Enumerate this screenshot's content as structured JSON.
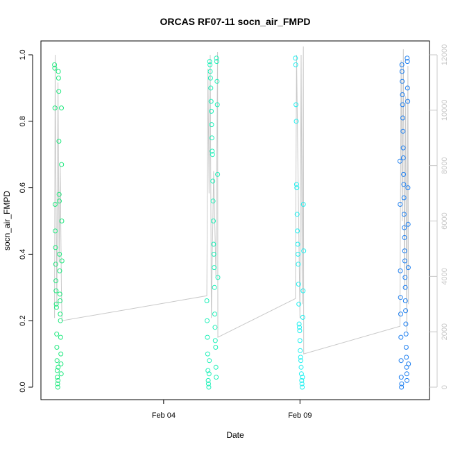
{
  "chart_data": {
    "type": "scatter",
    "title": "ORCAS RF07-11 socn_air_FMPD",
    "xlabel": "Date",
    "ylabel": "socn_air_FMPD",
    "xlim": [
      "2016-01-30T12:00",
      "2016-02-13T18:00"
    ],
    "ylim": [
      0,
      1
    ],
    "x_ticks": [
      {
        "label": "Feb 04",
        "value": "2016-02-04T00:00"
      },
      {
        "label": "Feb 09",
        "value": "2016-02-09T00:00"
      }
    ],
    "y_ticks": [
      "0.0",
      "0.2",
      "0.4",
      "0.6",
      "0.8",
      "1.0"
    ],
    "y2_ticks": [
      "0",
      "2000",
      "4000",
      "6000",
      "8000",
      "10000",
      "12000"
    ],
    "y2lim": [
      0,
      12000
    ],
    "grid": false,
    "legend": "none",
    "secondary_line_color": "#c8c8c8",
    "series": [
      {
        "color": "#1de87d",
        "x": [
          "2016-01-31T00:00",
          "2016-01-31T00:10",
          "2016-01-31T00:20",
          "2016-01-31T00:30",
          "2016-01-31T00:40",
          "2016-01-31T00:50",
          "2016-01-31T01:00",
          "2016-01-31T01:10",
          "2016-01-31T01:20",
          "2016-01-31T01:30",
          "2016-01-31T01:40",
          "2016-01-31T01:50",
          "2016-01-31T02:00",
          "2016-01-31T02:10",
          "2016-01-31T02:20",
          "2016-01-31T02:30",
          "2016-01-31T02:40",
          "2016-01-31T02:50",
          "2016-01-31T03:00",
          "2016-01-31T03:10",
          "2016-01-31T03:20",
          "2016-01-31T03:30",
          "2016-01-31T03:40",
          "2016-01-31T03:50",
          "2016-01-31T04:00",
          "2016-01-31T04:10",
          "2016-01-31T04:20",
          "2016-01-31T04:30",
          "2016-01-31T04:40",
          "2016-01-31T04:50",
          "2016-01-31T05:00",
          "2016-01-31T05:10",
          "2016-01-31T05:20",
          "2016-01-31T05:30",
          "2016-01-31T05:40",
          "2016-01-31T05:50",
          "2016-01-31T06:00",
          "2016-01-31T06:10",
          "2016-01-31T06:20",
          "2016-01-31T06:30"
        ],
        "values": [
          0.97,
          0.96,
          0.84,
          0.55,
          0.47,
          0.42,
          0.37,
          0.32,
          0.29,
          0.25,
          0.24,
          0.16,
          0.12,
          0.08,
          0.05,
          0.03,
          0.01,
          0.0,
          0.02,
          0.06,
          0.95,
          0.93,
          0.89,
          0.74,
          0.58,
          0.56,
          0.4,
          0.35,
          0.28,
          0.26,
          0.22,
          0.2,
          0.15,
          0.1,
          0.07,
          0.04,
          0.84,
          0.67,
          0.5,
          0.38
        ]
      },
      {
        "color": "#1df0b8",
        "x": [
          "2016-02-05T14:00",
          "2016-02-05T14:15",
          "2016-02-05T14:30",
          "2016-02-05T14:45",
          "2016-02-05T15:00",
          "2016-02-05T15:15",
          "2016-02-05T15:30",
          "2016-02-05T15:45",
          "2016-02-05T16:00",
          "2016-02-05T16:15",
          "2016-02-05T16:30",
          "2016-02-05T16:45",
          "2016-02-05T17:00",
          "2016-02-05T17:15",
          "2016-02-05T17:30",
          "2016-02-05T17:45",
          "2016-02-05T18:00",
          "2016-02-05T18:15",
          "2016-02-05T18:30",
          "2016-02-05T18:45",
          "2016-02-05T19:00",
          "2016-02-05T19:15",
          "2016-02-05T19:30",
          "2016-02-05T19:45",
          "2016-02-05T20:00",
          "2016-02-05T20:15",
          "2016-02-05T20:30",
          "2016-02-05T20:45",
          "2016-02-05T21:00",
          "2016-02-05T21:15",
          "2016-02-05T21:30",
          "2016-02-05T21:45",
          "2016-02-05T22:00",
          "2016-02-05T22:15",
          "2016-02-05T22:30",
          "2016-02-05T22:45",
          "2016-02-05T23:00",
          "2016-02-05T23:15",
          "2016-02-05T23:30",
          "2016-02-05T23:45"
        ],
        "values": [
          0.26,
          0.2,
          0.15,
          0.1,
          0.05,
          0.02,
          0.01,
          0.0,
          0.04,
          0.08,
          0.98,
          0.97,
          0.95,
          0.93,
          0.9,
          0.86,
          0.83,
          0.79,
          0.75,
          0.71,
          0.7,
          0.62,
          0.56,
          0.5,
          0.43,
          0.4,
          0.36,
          0.3,
          0.22,
          0.18,
          0.14,
          0.12,
          0.06,
          0.03,
          0.99,
          0.98,
          0.92,
          0.85,
          0.64,
          0.33
        ]
      },
      {
        "color": "#1ff0f0",
        "x": [
          "2016-02-08T20:00",
          "2016-02-08T20:15",
          "2016-02-08T20:30",
          "2016-02-08T20:45",
          "2016-02-08T21:00",
          "2016-02-08T21:15",
          "2016-02-08T21:30",
          "2016-02-08T21:45",
          "2016-02-08T22:00",
          "2016-02-08T22:15",
          "2016-02-08T22:30",
          "2016-02-08T22:45",
          "2016-02-08T23:00",
          "2016-02-08T23:15",
          "2016-02-08T23:30",
          "2016-02-08T23:45",
          "2016-02-09T00:00",
          "2016-02-09T00:15",
          "2016-02-09T00:30",
          "2016-02-09T00:45",
          "2016-02-09T01:00",
          "2016-02-09T01:15",
          "2016-02-09T01:30",
          "2016-02-09T01:45",
          "2016-02-09T02:00",
          "2016-02-09T02:15",
          "2016-02-09T02:30",
          "2016-02-09T02:45",
          "2016-02-09T03:00",
          "2016-02-09T03:15"
        ],
        "values": [
          0.99,
          0.97,
          0.85,
          0.8,
          0.61,
          0.6,
          0.52,
          0.47,
          0.43,
          0.4,
          0.37,
          0.31,
          0.25,
          0.19,
          0.18,
          0.17,
          0.14,
          0.11,
          0.09,
          0.08,
          0.06,
          0.04,
          0.02,
          0.01,
          0.0,
          0.03,
          0.21,
          0.29,
          0.55,
          0.41
        ]
      },
      {
        "color": "#1d7ff0",
        "x": [
          "2016-02-12T16:00",
          "2016-02-12T16:10",
          "2016-02-12T16:20",
          "2016-02-12T16:30",
          "2016-02-12T16:40",
          "2016-02-12T16:50",
          "2016-02-12T17:00",
          "2016-02-12T17:10",
          "2016-02-12T17:20",
          "2016-02-12T17:30",
          "2016-02-12T17:40",
          "2016-02-12T17:50",
          "2016-02-12T18:00",
          "2016-02-12T18:10",
          "2016-02-12T18:20",
          "2016-02-12T18:30",
          "2016-02-12T18:40",
          "2016-02-12T18:50",
          "2016-02-12T19:00",
          "2016-02-12T19:10",
          "2016-02-12T19:20",
          "2016-02-12T19:30",
          "2016-02-12T19:40",
          "2016-02-12T19:50",
          "2016-02-12T20:00",
          "2016-02-12T20:10",
          "2016-02-12T20:20",
          "2016-02-12T20:30",
          "2016-02-12T20:40",
          "2016-02-12T20:50",
          "2016-02-12T21:00",
          "2016-02-12T21:10",
          "2016-02-12T21:20",
          "2016-02-12T21:30",
          "2016-02-12T21:40",
          "2016-02-12T21:50",
          "2016-02-12T22:00",
          "2016-02-12T22:10",
          "2016-02-12T22:20",
          "2016-02-12T22:30",
          "2016-02-12T22:40",
          "2016-02-12T22:50",
          "2016-02-12T23:00",
          "2016-02-12T23:10",
          "2016-02-12T23:20",
          "2016-02-12T23:30"
        ],
        "values": [
          0.68,
          0.55,
          0.35,
          0.27,
          0.22,
          0.15,
          0.08,
          0.03,
          0.0,
          0.01,
          0.97,
          0.95,
          0.92,
          0.88,
          0.85,
          0.81,
          0.77,
          0.72,
          0.69,
          0.64,
          0.61,
          0.57,
          0.52,
          0.48,
          0.45,
          0.41,
          0.38,
          0.33,
          0.3,
          0.26,
          0.23,
          0.19,
          0.16,
          0.12,
          0.09,
          0.06,
          0.04,
          0.02,
          0.99,
          0.98,
          0.9,
          0.86,
          0.6,
          0.49,
          0.36,
          0.07
        ]
      }
    ],
    "secondary_series": {
      "axis": "right",
      "color": "#c8c8c8",
      "x": [
        "2016-01-31T00:00",
        "2016-01-31T00:30",
        "2016-01-31T01:00",
        "2016-01-31T02:00",
        "2016-01-31T03:00",
        "2016-01-31T04:00",
        "2016-01-31T05:00",
        "2016-01-31T06:00",
        "2016-01-31T06:30",
        "2016-02-05T14:00",
        "2016-02-05T15:00",
        "2016-02-05T16:00",
        "2016-02-05T17:00",
        "2016-02-05T18:00",
        "2016-02-05T20:00",
        "2016-02-05T22:00",
        "2016-02-05T23:30",
        "2016-02-05T23:45",
        "2016-02-08T20:00",
        "2016-02-08T21:00",
        "2016-02-08T22:00",
        "2016-02-09T00:00",
        "2016-02-09T01:00",
        "2016-02-09T02:00",
        "2016-02-09T03:00",
        "2016-02-09T03:15",
        "2016-02-12T16:00",
        "2016-02-12T17:00",
        "2016-02-12T18:00",
        "2016-02-12T19:00",
        "2016-02-12T20:00",
        "2016-02-12T21:00",
        "2016-02-12T22:00",
        "2016-02-12T23:00",
        "2016-02-12T23:30"
      ],
      "values": [
        2500,
        12000,
        8500,
        3000,
        11000,
        4500,
        8000,
        3500,
        2400,
        3300,
        11500,
        7000,
        12000,
        2500,
        7800,
        4000,
        12100,
        1800,
        3200,
        12000,
        8500,
        2500,
        12000,
        3000,
        12300,
        1200,
        2200,
        11800,
        6000,
        12200,
        3500,
        10500,
        2000,
        11600,
        3000
      ]
    }
  }
}
